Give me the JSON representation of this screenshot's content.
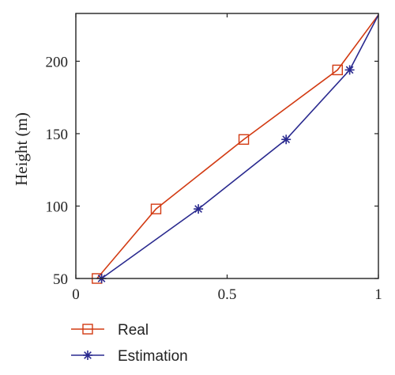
{
  "chart_data": {
    "type": "line",
    "title": "",
    "xlabel": "",
    "ylabel": "Height (m)",
    "xlim": [
      0,
      1
    ],
    "ylim": [
      50,
      233
    ],
    "x_ticks": [
      0,
      0.5,
      1
    ],
    "x_tick_labels": [
      "0",
      "0.5",
      "1"
    ],
    "y_ticks": [
      50,
      100,
      150,
      200
    ],
    "y_tick_labels": [
      "50",
      "100",
      "150",
      "200"
    ],
    "grid": false,
    "legend_position": "bottom",
    "series": [
      {
        "name": "Real",
        "color": "#d23a12",
        "marker": "square",
        "x": [
          0.07,
          0.265,
          0.555,
          0.865,
          1.0
        ],
        "y": [
          50,
          98,
          146,
          194,
          232
        ]
      },
      {
        "name": "Estimation",
        "color": "#2a2a8f",
        "marker": "asterisk",
        "x": [
          0.085,
          0.405,
          0.695,
          0.905,
          1.0
        ],
        "y": [
          50,
          98,
          146,
          194,
          232
        ]
      }
    ]
  }
}
